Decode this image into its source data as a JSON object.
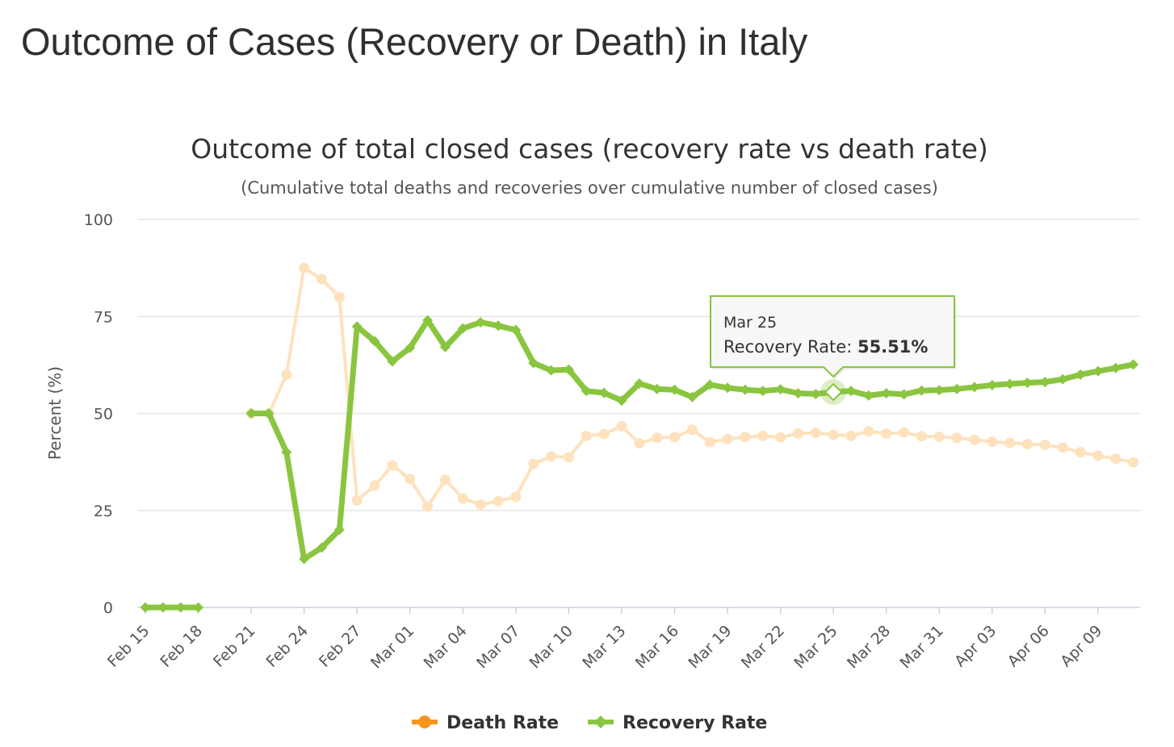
{
  "page": {
    "title": "Outcome of Cases (Recovery or Death) in Italy"
  },
  "chart_data": {
    "type": "line",
    "title": "Outcome of total closed cases (recovery rate vs death rate)",
    "subtitle": "(Cumulative total deaths and recoveries over cumulative number of closed cases)",
    "ylabel": "Percent (%)",
    "xlabel": "",
    "ylim": [
      0,
      100
    ],
    "yticks": [
      0,
      25,
      50,
      75,
      100
    ],
    "grid": true,
    "legend_position": "bottom-center",
    "x": [
      "Feb 15",
      "Feb 16",
      "Feb 17",
      "Feb 18",
      "Feb 19",
      "Feb 20",
      "Feb 21",
      "Feb 22",
      "Feb 23",
      "Feb 24",
      "Feb 25",
      "Feb 26",
      "Feb 27",
      "Feb 28",
      "Feb 29",
      "Mar 01",
      "Mar 02",
      "Mar 03",
      "Mar 04",
      "Mar 05",
      "Mar 06",
      "Mar 07",
      "Mar 08",
      "Mar 09",
      "Mar 10",
      "Mar 11",
      "Mar 12",
      "Mar 13",
      "Mar 14",
      "Mar 15",
      "Mar 16",
      "Mar 17",
      "Mar 18",
      "Mar 19",
      "Mar 20",
      "Mar 21",
      "Mar 22",
      "Mar 23",
      "Mar 24",
      "Mar 25",
      "Mar 26",
      "Mar 27",
      "Mar 28",
      "Mar 29",
      "Mar 30",
      "Mar 31",
      "Apr 01",
      "Apr 02",
      "Apr 03",
      "Apr 04",
      "Apr 05",
      "Apr 06",
      "Apr 07",
      "Apr 08",
      "Apr 09",
      "Apr 10",
      "Apr 11"
    ],
    "xtick_labels": [
      "Feb 15",
      "Feb 18",
      "Feb 21",
      "Feb 24",
      "Feb 27",
      "Mar 01",
      "Mar 04",
      "Mar 07",
      "Mar 10",
      "Mar 13",
      "Mar 16",
      "Mar 19",
      "Mar 22",
      "Mar 25",
      "Mar 28",
      "Mar 31",
      "Apr 03",
      "Apr 06",
      "Apr 09"
    ],
    "series": [
      {
        "name": "Death Rate",
        "color": "#f7941d",
        "faded": true,
        "values": [
          null,
          null,
          null,
          null,
          null,
          null,
          50,
          50,
          60,
          87.5,
          84.6,
          80,
          27.6,
          31.4,
          36.6,
          33.1,
          26,
          32.9,
          28.1,
          26.5,
          27.4,
          28.5,
          37,
          38.9,
          38.7,
          44.2,
          44.7,
          46.7,
          42.3,
          43.7,
          43.9,
          45.8,
          42.6,
          43.4,
          43.9,
          44.2,
          43.8,
          44.8,
          45,
          44.5,
          44.2,
          45.4,
          44.8,
          45.1,
          44.1,
          44,
          43.7,
          43.2,
          42.7,
          42.4,
          42.1,
          41.9,
          41.2,
          40,
          39.1,
          38.3,
          37.4
        ]
      },
      {
        "name": "Recovery Rate",
        "color": "#8ac53f",
        "faded": false,
        "values": [
          0,
          0,
          0,
          0,
          null,
          null,
          50,
          50,
          40,
          12.5,
          15.4,
          20,
          72.4,
          68.6,
          63.4,
          66.9,
          74,
          67.1,
          71.9,
          73.5,
          72.6,
          71.5,
          63,
          61.1,
          61.3,
          55.8,
          55.3,
          53.3,
          57.7,
          56.3,
          56.1,
          54.2,
          57.4,
          56.6,
          56.1,
          55.8,
          56.2,
          55.2,
          55,
          55.51,
          55.8,
          54.6,
          55.2,
          54.9,
          55.9,
          56,
          56.3,
          56.8,
          57.3,
          57.6,
          57.9,
          58.1,
          58.8,
          60,
          60.9,
          61.7,
          62.6
        ]
      }
    ],
    "tooltip": {
      "date": "Mar 25",
      "label": "Recovery Rate",
      "value_text": "55.51%",
      "series": "Recovery Rate"
    }
  }
}
